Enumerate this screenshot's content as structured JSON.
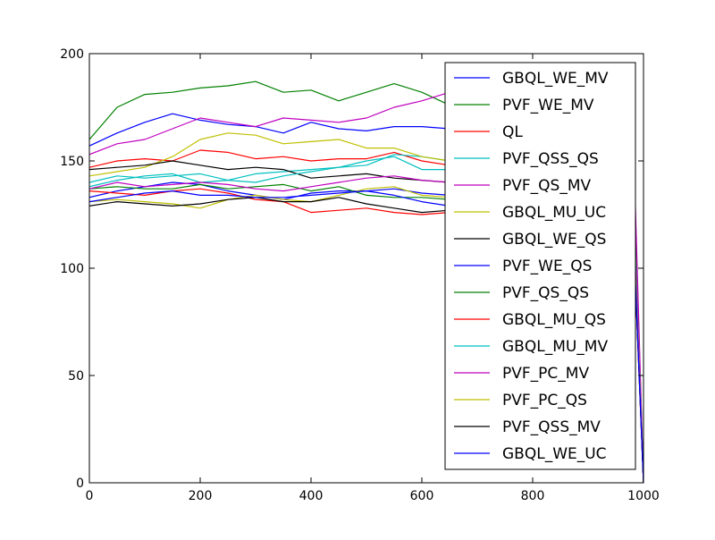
{
  "chart_data": {
    "type": "line",
    "title": "",
    "xlabel": "",
    "ylabel": "",
    "xlim": [
      0,
      1000
    ],
    "ylim": [
      0,
      200
    ],
    "x_ticks": [
      0,
      200,
      400,
      600,
      800,
      1000
    ],
    "y_ticks": [
      0,
      50,
      100,
      150,
      200
    ],
    "x_tick_labels": [
      "0",
      "200",
      "400",
      "600",
      "800",
      "1000"
    ],
    "y_tick_labels": [
      "0",
      "50",
      "100",
      "150",
      "200"
    ],
    "grid": false,
    "legend_position": "right",
    "x": [
      0,
      50,
      100,
      150,
      200,
      250,
      300,
      350,
      400,
      450,
      500,
      550,
      600,
      650,
      700,
      750,
      800,
      850,
      900,
      950,
      980,
      1000
    ],
    "series": [
      {
        "name": "GBQL_WE_MV",
        "color": "#0000ff",
        "values": [
          157,
          163,
          168,
          172,
          169,
          167,
          166,
          163,
          168,
          165,
          164,
          166,
          166,
          165,
          163,
          161,
          159,
          158,
          157,
          156,
          155,
          0
        ]
      },
      {
        "name": "PVF_WE_MV",
        "color": "#008000",
        "values": [
          160,
          175,
          181,
          182,
          184,
          185,
          187,
          182,
          183,
          178,
          182,
          186,
          182,
          176,
          174,
          175,
          173,
          171,
          170,
          169,
          168,
          0
        ]
      },
      {
        "name": "QL",
        "color": "#ff0000",
        "values": [
          147,
          150,
          151,
          150,
          155,
          154,
          151,
          152,
          150,
          151,
          151,
          154,
          150,
          148,
          147,
          146,
          146,
          145,
          145,
          144,
          144,
          0
        ]
      },
      {
        "name": "PVF_QSS_QS",
        "color": "#00bfbf",
        "values": [
          140,
          143,
          142,
          143,
          144,
          141,
          144,
          145,
          146,
          147,
          148,
          153,
          152,
          150,
          149,
          148,
          147,
          147,
          146,
          146,
          145,
          0
        ]
      },
      {
        "name": "PVF_QS_MV",
        "color": "#bf00bf",
        "values": [
          153,
          158,
          160,
          165,
          170,
          168,
          166,
          170,
          169,
          168,
          170,
          175,
          178,
          182,
          181,
          180,
          179,
          178,
          177,
          176,
          176,
          0
        ]
      },
      {
        "name": "GBQL_MU_UC",
        "color": "#bfbf00",
        "values": [
          143,
          145,
          147,
          152,
          160,
          163,
          162,
          158,
          159,
          160,
          156,
          156,
          152,
          150,
          149,
          148,
          147,
          146,
          146,
          145,
          145,
          0
        ]
      },
      {
        "name": "GBQL_WE_QS",
        "color": "#000000",
        "values": [
          146,
          147,
          148,
          150,
          148,
          146,
          147,
          146,
          142,
          143,
          144,
          142,
          141,
          140,
          139,
          139,
          138,
          138,
          137,
          137,
          137,
          0
        ]
      },
      {
        "name": "PVF_WE_QS",
        "color": "#0000ff",
        "values": [
          133,
          136,
          138,
          140,
          139,
          136,
          134,
          132,
          135,
          136,
          136,
          137,
          135,
          134,
          134,
          133,
          133,
          132,
          132,
          131,
          131,
          0
        ]
      },
      {
        "name": "PVF_QS_QS",
        "color": "#008000",
        "values": [
          137,
          138,
          137,
          137,
          139,
          137,
          138,
          139,
          136,
          138,
          134,
          133,
          133,
          132,
          132,
          131,
          131,
          130,
          130,
          130,
          130,
          0
        ]
      },
      {
        "name": "GBQL_MU_QS",
        "color": "#ff0000",
        "values": [
          136,
          135,
          134,
          136,
          137,
          135,
          132,
          131,
          126,
          127,
          128,
          126,
          125,
          126,
          126,
          126,
          126,
          126,
          126,
          126,
          126,
          0
        ]
      },
      {
        "name": "GBQL_MU_MV",
        "color": "#00bfbf",
        "values": [
          138,
          141,
          143,
          144,
          140,
          141,
          140,
          143,
          145,
          147,
          150,
          152,
          146,
          146,
          145,
          145,
          144,
          144,
          144,
          143,
          143,
          0
        ]
      },
      {
        "name": "PVF_PC_MV",
        "color": "#bf00bf",
        "values": [
          137,
          140,
          138,
          139,
          140,
          139,
          137,
          136,
          138,
          140,
          142,
          143,
          141,
          140,
          140,
          139,
          139,
          138,
          138,
          138,
          138,
          0
        ]
      },
      {
        "name": "PVF_PC_QS",
        "color": "#bfbf00",
        "values": [
          131,
          132,
          131,
          130,
          128,
          132,
          134,
          132,
          131,
          134,
          137,
          138,
          134,
          133,
          133,
          132,
          132,
          132,
          131,
          131,
          131,
          0
        ]
      },
      {
        "name": "PVF_QSS_MV",
        "color": "#000000",
        "values": [
          129,
          131,
          130,
          129,
          130,
          132,
          133,
          131,
          131,
          133,
          130,
          128,
          126,
          127,
          127,
          127,
          127,
          127,
          127,
          127,
          127,
          0
        ]
      },
      {
        "name": "GBQL_WE_UC",
        "color": "#0000ff",
        "values": [
          131,
          133,
          135,
          136,
          134,
          134,
          133,
          133,
          134,
          135,
          136,
          134,
          131,
          129,
          128,
          128,
          128,
          128,
          128,
          128,
          128,
          0
        ]
      }
    ]
  }
}
